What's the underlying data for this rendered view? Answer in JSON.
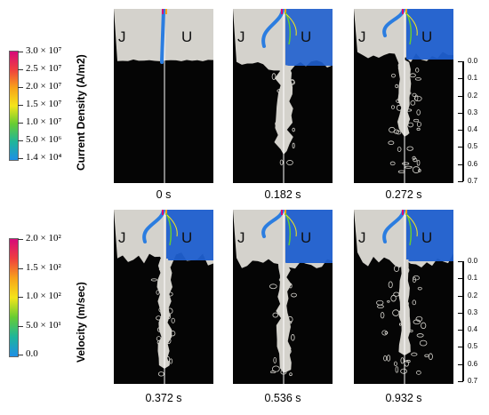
{
  "panel_labels": {
    "left": "J",
    "right": "U"
  },
  "top_row": {
    "colorbar_title": "Current Density (A/m2)",
    "colorbar_ticks": [
      "3.0 × 10⁷",
      "2.5 × 10⁷",
      "2.0 × 10⁷",
      "1.5 × 10⁷",
      "1.0 × 10⁷",
      "5.0 × 10⁶",
      "1.4 × 10⁴"
    ],
    "times": [
      "0 s",
      "0.182 s",
      "0.272 s"
    ]
  },
  "bottom_row": {
    "colorbar_title": "Velocity (m/sec)",
    "colorbar_ticks": [
      "2.0 × 10²",
      "1.5 × 10²",
      "1.0 × 10²",
      "5.0 × 10¹",
      "0.0"
    ],
    "times": [
      "0.372 s",
      "0.536 s",
      "0.932 s"
    ]
  },
  "scale_labels": [
    "0.0",
    "0.1",
    "0.2",
    "0.3",
    "0.4",
    "0.5",
    "0.6",
    "0.7"
  ],
  "colors": {
    "background": "#ffffff",
    "fluid_gray": "#d4d2cc",
    "dark": "#050505",
    "jet_blue": "#2b7de0",
    "field_blue": "#1f5fcf",
    "colormap": [
      "#d60a7a",
      "#ef3f3f",
      "#f7a21a",
      "#f4e51a",
      "#66cc33",
      "#1fb59a",
      "#1f8fe6"
    ]
  }
}
